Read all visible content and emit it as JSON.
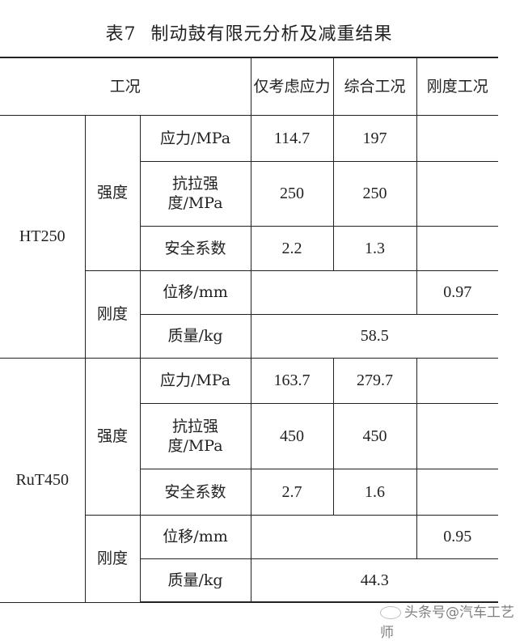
{
  "title": {
    "number": "表7",
    "text": "制动鼓有限元分析及减重结果"
  },
  "header": {
    "condition": "工况",
    "stress_only": "仅考虑应力",
    "combined": "综合工况",
    "stiffness": "刚度工况"
  },
  "sections": [
    {
      "material": "HT250",
      "strength_label": "强度",
      "stiffness_label": "刚度",
      "rows": {
        "stress": {
          "label": "应力/MPa",
          "stress_only": "114.7",
          "combined": "197"
        },
        "tensile": {
          "label": "抗拉强度/MPa",
          "stress_only": "250",
          "combined": "250"
        },
        "safety": {
          "label": "安全系数",
          "stress_only": "2.2",
          "combined": "1.3"
        },
        "displacement": {
          "label": "位移/mm",
          "stiffness": "0.97"
        },
        "mass": {
          "label": "质量/kg",
          "value": "58.5"
        }
      }
    },
    {
      "material": "RuT450",
      "strength_label": "强度",
      "stiffness_label": "刚度",
      "rows": {
        "stress": {
          "label": "应力/MPa",
          "stress_only": "163.7",
          "combined": "279.7"
        },
        "tensile": {
          "label": "抗拉强度/MPa",
          "stress_only": "450",
          "combined": "450"
        },
        "safety": {
          "label": "安全系数",
          "stress_only": "2.7",
          "combined": "1.6"
        },
        "displacement": {
          "label": "位移/mm",
          "stiffness": "0.95"
        },
        "mass": {
          "label": "质量/kg",
          "value": "44.3"
        }
      }
    }
  ],
  "watermark": "头条号@汽车工艺师"
}
